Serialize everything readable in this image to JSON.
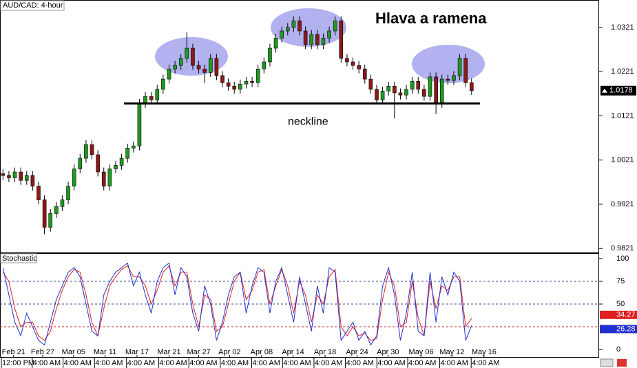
{
  "chart_data": [
    {
      "type": "candlestick",
      "title": "AUD/CAD: 4-hour",
      "annotation": "Hlava a ramena",
      "neckline": {
        "label": "neckline",
        "value": 1.0149
      },
      "up_color": "#1f9a1f",
      "down_color": "#8b1a1a",
      "xlim": [
        -0.5,
        100.5
      ],
      "ylim": [
        0.9812,
        1.0383
      ],
      "yticks": [
        0.9821,
        0.9921,
        1.0021,
        1.0121,
        1.0221,
        1.0321
      ],
      "open": [
        0.999,
        0.9986,
        0.9981,
        0.9994,
        0.9975,
        0.9986,
        0.9962,
        0.9931,
        0.9869,
        0.99,
        0.9916,
        0.9931,
        0.9962,
        1.0001,
        1.0025,
        1.0056,
        1.0033,
        0.9994,
        0.9962,
        1.0001,
        1.0009,
        1.0025,
        1.0048,
        1.0053,
        1.0149,
        1.0165,
        1.0157,
        1.0181,
        1.0204,
        1.0227,
        1.0235,
        1.0251,
        1.0274,
        1.0235,
        1.0227,
        1.0219,
        1.0251,
        1.0212,
        1.0196,
        1.0188,
        1.0181,
        1.0193,
        1.0199,
        1.0196,
        1.0227,
        1.0243,
        1.0274,
        1.0297,
        1.0313,
        1.0321,
        1.0336,
        1.0313,
        1.0282,
        1.0305,
        1.0282,
        1.0297,
        1.0313,
        1.0336,
        1.0251,
        1.0243,
        1.0235,
        1.0227,
        1.0204,
        1.0181,
        1.0157,
        1.0177,
        1.0188,
        1.0173,
        1.0168,
        1.0181,
        1.0199,
        1.0181,
        1.0165,
        1.0209,
        1.0149,
        1.0204,
        1.0201,
        1.0212,
        1.0251,
        1.0196
      ],
      "high": [
        1.0,
        0.9996,
        1.0004,
        1.0004,
        0.9996,
        0.9996,
        0.9972,
        0.9941,
        0.991,
        0.9926,
        0.9941,
        0.9972,
        1.0011,
        1.0035,
        1.0066,
        1.0066,
        1.0043,
        1.0004,
        1.0011,
        1.0019,
        1.0035,
        1.0058,
        1.0063,
        1.0159,
        1.0175,
        1.0175,
        1.0191,
        1.0214,
        1.0237,
        1.0245,
        1.0261,
        1.031,
        1.0284,
        1.0245,
        1.0237,
        1.0261,
        1.0261,
        1.0222,
        1.0206,
        1.0198,
        1.0203,
        1.0209,
        1.0209,
        1.0237,
        1.0253,
        1.0284,
        1.0307,
        1.0323,
        1.0331,
        1.0346,
        1.0346,
        1.0323,
        1.0315,
        1.0315,
        1.0307,
        1.0323,
        1.0346,
        1.0346,
        1.0261,
        1.0253,
        1.0245,
        1.0237,
        1.0214,
        1.0191,
        1.0187,
        1.0198,
        1.0198,
        1.0183,
        1.0191,
        1.0209,
        1.0209,
        1.0191,
        1.0219,
        1.0219,
        1.0214,
        1.0214,
        1.0222,
        1.0261,
        1.0261,
        1.0206
      ],
      "low": [
        0.9976,
        0.9971,
        0.9971,
        0.9965,
        0.9965,
        0.9952,
        0.9921,
        0.9853,
        0.9859,
        0.989,
        0.9906,
        0.9921,
        0.9952,
        0.9991,
        1.0015,
        1.0023,
        0.9984,
        0.9952,
        0.9952,
        0.9991,
        0.9999,
        1.0015,
        1.0038,
        1.0043,
        1.0139,
        1.0147,
        1.0147,
        1.0171,
        1.0194,
        1.0217,
        1.0225,
        1.0241,
        1.0225,
        1.0217,
        1.0195,
        1.0209,
        1.0202,
        1.0186,
        1.0178,
        1.0171,
        1.0171,
        1.0183,
        1.0186,
        1.0186,
        1.0217,
        1.0233,
        1.0264,
        1.0287,
        1.0303,
        1.0311,
        1.0303,
        1.0272,
        1.0272,
        1.0272,
        1.0272,
        1.0287,
        1.0303,
        1.0241,
        1.0233,
        1.0225,
        1.0217,
        1.0194,
        1.0171,
        1.0147,
        1.0147,
        1.0167,
        1.0115,
        1.0158,
        1.0158,
        1.0171,
        1.0171,
        1.0155,
        1.0155,
        1.0125,
        1.0139,
        1.0191,
        1.0191,
        1.0202,
        1.0186,
        1.0168
      ],
      "close": [
        0.9986,
        0.9981,
        0.9994,
        0.9975,
        0.9986,
        0.9962,
        0.9931,
        0.9869,
        0.99,
        0.9916,
        0.9931,
        0.9962,
        1.0001,
        1.0025,
        1.0056,
        1.0033,
        0.9994,
        0.9962,
        1.0001,
        1.0009,
        1.0025,
        1.0048,
        1.0053,
        1.0149,
        1.0165,
        1.0157,
        1.0181,
        1.0204,
        1.0227,
        1.0235,
        1.0251,
        1.0274,
        1.0235,
        1.0227,
        1.0219,
        1.0251,
        1.0212,
        1.0196,
        1.0188,
        1.0181,
        1.0193,
        1.0199,
        1.0196,
        1.0227,
        1.0243,
        1.0274,
        1.0297,
        1.0313,
        1.0321,
        1.0336,
        1.0313,
        1.0282,
        1.0305,
        1.0282,
        1.0297,
        1.0313,
        1.0336,
        1.0251,
        1.0243,
        1.0235,
        1.0227,
        1.0204,
        1.0181,
        1.0157,
        1.0177,
        1.0188,
        1.0173,
        1.0168,
        1.0181,
        1.0199,
        1.0181,
        1.0165,
        1.0209,
        1.0149,
        1.0204,
        1.0201,
        1.0212,
        1.0251,
        1.0196,
        1.0178
      ]
    },
    {
      "type": "line",
      "title": "Stochastic",
      "xlim": [
        -0.5,
        100.5
      ],
      "ylim": [
        -9,
        106
      ],
      "yticks": [
        0,
        50,
        75,
        100
      ],
      "levels": [
        {
          "value": 75,
          "color": "#3a4a9a"
        },
        {
          "value": 50,
          "color": "#3a4a9a"
        },
        {
          "value": 25,
          "color": "#c02020"
        }
      ],
      "series": [
        {
          "color": "#e02020",
          "values": [
            85,
            75,
            45,
            25,
            30,
            30,
            15,
            10,
            20,
            45,
            65,
            80,
            88,
            85,
            60,
            30,
            15,
            45,
            70,
            80,
            88,
            92,
            80,
            80,
            70,
            50,
            65,
            85,
            92,
            70,
            85,
            85,
            50,
            25,
            60,
            55,
            20,
            25,
            50,
            75,
            85,
            55,
            65,
            85,
            88,
            50,
            70,
            88,
            70,
            40,
            75,
            60,
            30,
            60,
            50,
            80,
            88,
            25,
            15,
            25,
            15,
            18,
            10,
            12,
            55,
            85,
            70,
            25,
            30,
            75,
            35,
            15,
            75,
            45,
            70,
            65,
            80,
            80,
            25,
            34.27
          ]
        },
        {
          "color": "#2030d0",
          "values": [
            90,
            60,
            30,
            15,
            40,
            25,
            10,
            5,
            30,
            55,
            70,
            85,
            90,
            80,
            50,
            20,
            15,
            60,
            75,
            85,
            90,
            95,
            70,
            85,
            60,
            40,
            75,
            90,
            95,
            60,
            90,
            80,
            40,
            20,
            70,
            50,
            10,
            30,
            60,
            80,
            85,
            40,
            70,
            90,
            85,
            40,
            75,
            90,
            60,
            30,
            80,
            50,
            20,
            70,
            40,
            90,
            85,
            10,
            20,
            30,
            10,
            20,
            5,
            15,
            70,
            90,
            60,
            10,
            40,
            85,
            20,
            15,
            85,
            30,
            80,
            60,
            85,
            75,
            10,
            26.28
          ]
        }
      ],
      "xticks": [
        {
          "value": 1.8,
          "label": "Feb 21"
        },
        {
          "value": 6.7,
          "label": "Feb 27"
        },
        {
          "value": 11.9,
          "label": "Mar 05"
        },
        {
          "value": 17.2,
          "label": "Mar 11"
        },
        {
          "value": 22.6,
          "label": "Mar 17"
        },
        {
          "value": 28,
          "label": "Mar 21"
        },
        {
          "value": 33,
          "label": "Mar 27"
        },
        {
          "value": 38.2,
          "label": "Apr 02"
        },
        {
          "value": 43.6,
          "label": "Apr 08"
        },
        {
          "value": 48.9,
          "label": "Apr 14"
        },
        {
          "value": 54.3,
          "label": "Apr 18"
        },
        {
          "value": 59.7,
          "label": "Apr 24"
        },
        {
          "value": 64.9,
          "label": "Apr 30"
        },
        {
          "value": 70.5,
          "label": "May 06"
        },
        {
          "value": 75.7,
          "label": "May 12"
        },
        {
          "value": 81.1,
          "label": "May 16"
        }
      ],
      "time_ticks": [
        {
          "value": -0.5,
          "label": "12:00 PM"
        },
        {
          "value": 4.7,
          "label": "4:00 AM"
        },
        {
          "value": 9.9,
          "label": "4:00 AM"
        },
        {
          "value": 15.2,
          "label": "4:00 AM"
        },
        {
          "value": 20.6,
          "label": "4:00 AM"
        },
        {
          "value": 26,
          "label": "4:00 AM"
        },
        {
          "value": 31.1,
          "label": "4:00 AM"
        },
        {
          "value": 36.4,
          "label": "4:00 AM"
        },
        {
          "value": 41.7,
          "label": "4:00 AM"
        },
        {
          "value": 46.9,
          "label": "4:00 AM"
        },
        {
          "value": 52.2,
          "label": "4:00 AM"
        },
        {
          "value": 57.5,
          "label": "4:00 AM"
        },
        {
          "value": 62.8,
          "label": "4:00 AM"
        },
        {
          "value": 68,
          "label": "4:00 AM"
        },
        {
          "value": 73.4,
          "label": "4:00 AM"
        },
        {
          "value": 78.7,
          "label": "4:00 AM"
        }
      ]
    }
  ]
}
